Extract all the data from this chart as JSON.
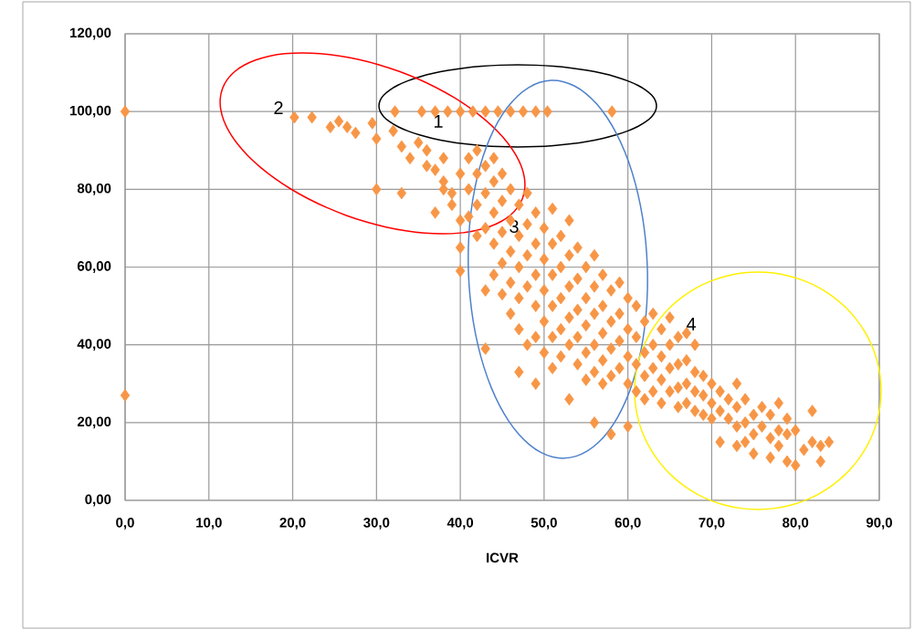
{
  "chart_data": {
    "type": "scatter",
    "xlabel": "ICVR",
    "color": "#f79646",
    "marker": "diamond",
    "grid": true,
    "xlim": [
      0,
      90
    ],
    "ylim": [
      0,
      120
    ],
    "xticks": [
      {
        "value": 0,
        "label": "0,0"
      },
      {
        "value": 10,
        "label": "10,0"
      },
      {
        "value": 20,
        "label": "20,0"
      },
      {
        "value": 30,
        "label": "30,0"
      },
      {
        "value": 40,
        "label": "40,0"
      },
      {
        "value": 50,
        "label": "50,0"
      },
      {
        "value": 60,
        "label": "60,0"
      },
      {
        "value": 70,
        "label": "70,0"
      },
      {
        "value": 80,
        "label": "80,0"
      },
      {
        "value": 90,
        "label": "90,0"
      }
    ],
    "yticks": [
      {
        "value": 0,
        "label": "0,00"
      },
      {
        "value": 20,
        "label": "20,00"
      },
      {
        "value": 40,
        "label": "40,00"
      },
      {
        "value": 60,
        "label": "60,00"
      },
      {
        "value": 80,
        "label": "80,00"
      },
      {
        "value": 100,
        "label": "100,00"
      },
      {
        "value": 120,
        "label": "120,00"
      }
    ],
    "x": [
      0,
      0,
      32.2,
      35.4,
      37,
      38.5,
      40,
      41.5,
      43,
      44.5,
      46,
      47.5,
      49,
      50.4,
      58.1,
      20.2,
      22.3,
      24.5,
      25.5,
      26.5,
      27.5,
      29.5,
      30,
      30,
      33,
      32,
      33,
      34,
      35,
      36,
      36,
      37,
      38,
      38,
      39,
      39,
      37,
      38,
      40,
      40,
      40,
      40,
      41,
      41,
      41,
      42,
      42,
      42,
      42,
      43,
      43,
      43,
      43,
      43,
      44,
      44,
      44,
      44,
      44,
      45,
      45,
      45,
      45,
      45,
      46,
      46,
      46,
      46,
      46,
      47,
      47,
      47,
      47,
      47,
      47,
      48,
      48,
      48,
      48,
      48,
      49,
      49,
      49,
      49,
      49,
      49,
      50,
      50,
      50,
      50,
      50,
      51,
      51,
      51,
      51,
      51,
      51,
      52,
      52,
      52,
      52,
      52,
      53,
      53,
      53,
      53,
      53,
      53,
      54,
      54,
      54,
      54,
      54,
      55,
      55,
      55,
      55,
      55,
      56,
      56,
      56,
      56,
      56,
      56,
      57,
      57,
      57,
      57,
      57,
      58,
      58,
      58,
      58,
      58,
      59,
      59,
      59,
      59,
      60,
      60,
      60,
      60,
      60,
      61,
      61,
      61,
      61,
      62,
      62,
      62,
      62,
      63,
      63,
      63,
      63,
      64,
      64,
      64,
      64,
      65,
      65,
      65,
      65,
      66,
      66,
      66,
      66,
      67,
      67,
      67,
      67,
      68,
      68,
      68,
      68,
      69,
      69,
      69,
      70,
      70,
      70,
      71,
      71,
      71,
      72,
      72,
      73,
      73,
      73,
      73,
      74,
      74,
      74,
      75,
      75,
      75,
      76,
      76,
      77,
      77,
      77,
      78,
      78,
      78,
      79,
      79,
      79,
      80,
      80,
      81,
      82,
      82,
      83,
      83,
      84
    ],
    "values": [
      100,
      27,
      100,
      100,
      100,
      100,
      100,
      100,
      100,
      100,
      100,
      100,
      100,
      100,
      100,
      98.5,
      98.5,
      96,
      97.5,
      96,
      94.5,
      97,
      93,
      80,
      79,
      95,
      91,
      88,
      92,
      90,
      86,
      85,
      82,
      88,
      79,
      76,
      74,
      80,
      84,
      72,
      65,
      59,
      88,
      80,
      73,
      90,
      84,
      76,
      68,
      86,
      79,
      70,
      54,
      39,
      88,
      82,
      74,
      66,
      58,
      84,
      77,
      69,
      61,
      53,
      80,
      72,
      64,
      56,
      48,
      76,
      68,
      60,
      52,
      44,
      33,
      79,
      71,
      63,
      55,
      40,
      74,
      66,
      58,
      50,
      42,
      30,
      70,
      62,
      54,
      46,
      38,
      75,
      66,
      58,
      50,
      42,
      34,
      68,
      60,
      52,
      44,
      37,
      72,
      63,
      55,
      47,
      40,
      26,
      65,
      57,
      49,
      42,
      35,
      60,
      52,
      45,
      38,
      31,
      63,
      55,
      48,
      40,
      33,
      20,
      58,
      50,
      43,
      36,
      30,
      54,
      46,
      39,
      32,
      17,
      56,
      48,
      41,
      34,
      52,
      44,
      37,
      30,
      19,
      50,
      42,
      35,
      28,
      46,
      38,
      32,
      26,
      48,
      40,
      34,
      28,
      44,
      37,
      31,
      25,
      47,
      40,
      34,
      28,
      42,
      35,
      29,
      24,
      43,
      36,
      30,
      25,
      40,
      33,
      28,
      23,
      32,
      27,
      22,
      30,
      25,
      21,
      28,
      23,
      15,
      26,
      21,
      30,
      24,
      19,
      14,
      26,
      20,
      15,
      22,
      17,
      12,
      24,
      19,
      22,
      16,
      11,
      25,
      18,
      14,
      21,
      17,
      10,
      18,
      9,
      13,
      15,
      23,
      14,
      10,
      15
    ],
    "annotations": [
      "1",
      "2",
      "3",
      "4"
    ]
  }
}
